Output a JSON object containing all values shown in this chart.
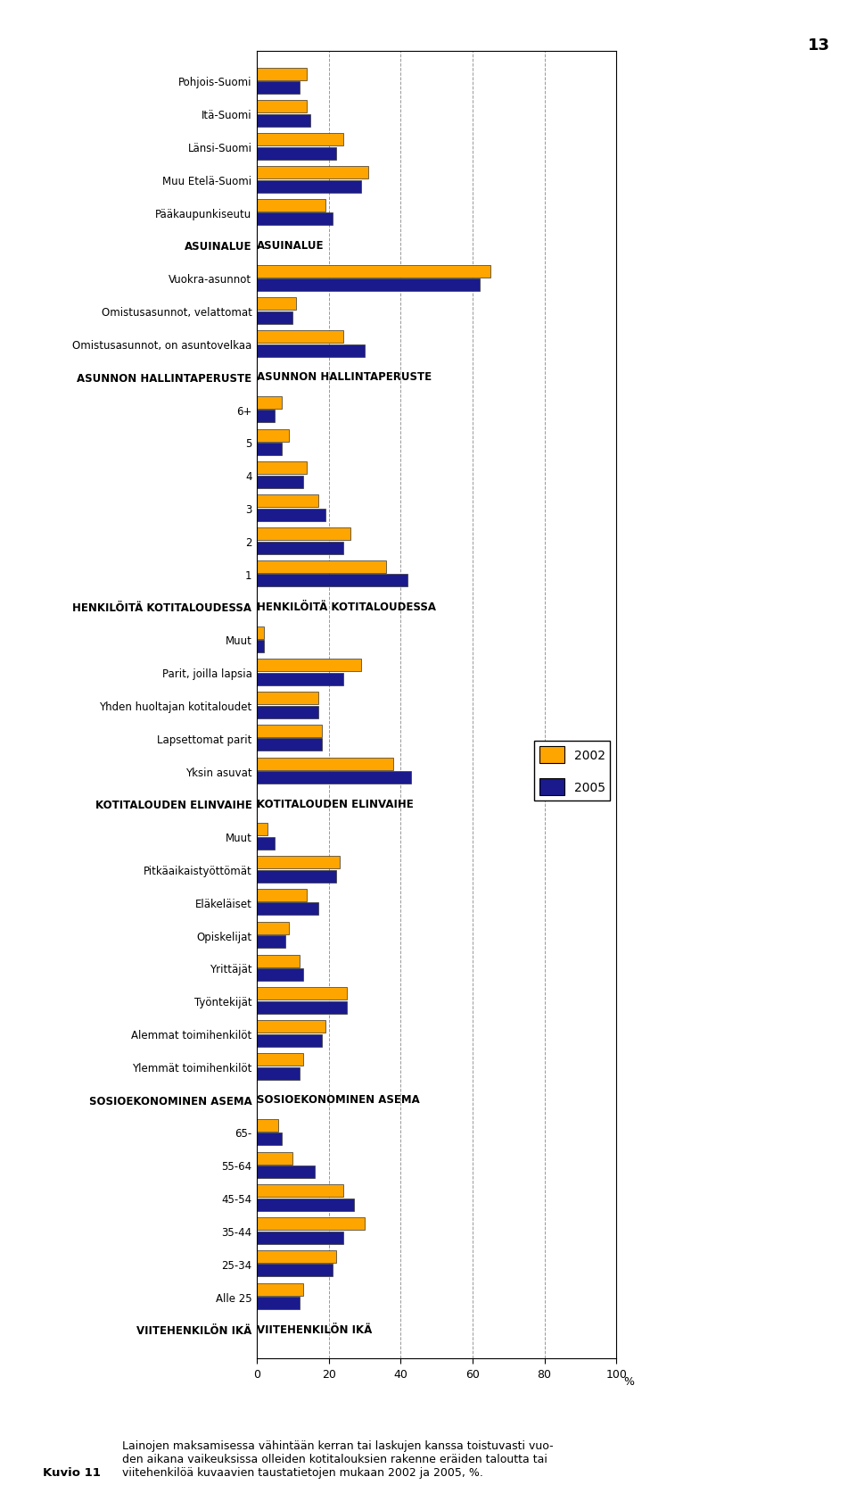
{
  "categories": [
    "VIITEHENKILÖN IKÄ",
    "Alle 25",
    "25-34",
    "35-44",
    "45-54",
    "55-64",
    "65-",
    "SOSIOEKONOMINEN ASEMA",
    "Ylemmät toimihenkilöt",
    "Alemmat toimihenkilöt",
    "Työntekijät",
    "Yrittäjät",
    "Opiskelijat",
    "Eläkeläiset",
    "Pitkäaikaistyöttömät",
    "Muut",
    "KOTITALOUDEN ELINVAIHE",
    "Yksin asuvat",
    "Lapsettomat parit",
    "Yhden huoltajan kotitaloudet",
    "Parit, joilla lapsia",
    "Muut",
    "HENKILÖITÄ KOTITALOUDESSA",
    "1",
    "2",
    "3",
    "4",
    "5",
    "6+",
    "ASUNNON HALLINTAPERUSTE",
    "Omistusasunnot, on asuntovelkaa",
    "Omistusasunnot, velattomat",
    "Vuokra-asunnot",
    "ASUINALUE",
    "Pääkaupunkiseutu",
    "Muu Etelä-Suomi",
    "Länsi-Suomi",
    "Itä-Suomi",
    "Pohjois-Suomi"
  ],
  "values_2002": [
    null,
    13,
    22,
    30,
    24,
    10,
    6,
    null,
    13,
    19,
    25,
    12,
    9,
    14,
    23,
    3,
    null,
    38,
    18,
    17,
    29,
    2,
    null,
    36,
    26,
    17,
    14,
    9,
    7,
    null,
    24,
    11,
    65,
    null,
    19,
    31,
    24,
    14,
    14
  ],
  "values_2005": [
    null,
    12,
    21,
    24,
    27,
    16,
    7,
    null,
    12,
    18,
    25,
    13,
    8,
    17,
    22,
    5,
    null,
    43,
    18,
    17,
    24,
    2,
    null,
    42,
    24,
    19,
    13,
    7,
    5,
    null,
    30,
    10,
    62,
    null,
    21,
    29,
    22,
    15,
    12
  ],
  "color_2002": "#FFA500",
  "color_2005": "#1a1a8c",
  "header_categories": [
    "VIITEHENKILÖN IKÄ",
    "SOSIOEKONOMINEN ASEMA",
    "KOTITALOUDEN ELINVAIHE",
    "HENKILÖITÄ KOTITALOUDESSA",
    "ASUNNON HALLINTAPERUSTE",
    "ASUINALUE"
  ],
  "legend_labels": [
    "2002",
    "2005"
  ],
  "xlim": [
    0,
    100
  ],
  "xticks": [
    0,
    20,
    40,
    60,
    80,
    100
  ],
  "figure_number": "13",
  "caption_bold": "Kuvio 11",
  "caption_text": "   Lainojen maksamisessa vähintään kerran tai laskujen kanssa toistuvasti vuo-\n   den aikana vaikeuksissa olleiden kotitalouksien rakenne eräiden taloutta tai\n   viitehenkilöä kuvaavien taustatietojen mukaan 2002 ja 2005, %."
}
